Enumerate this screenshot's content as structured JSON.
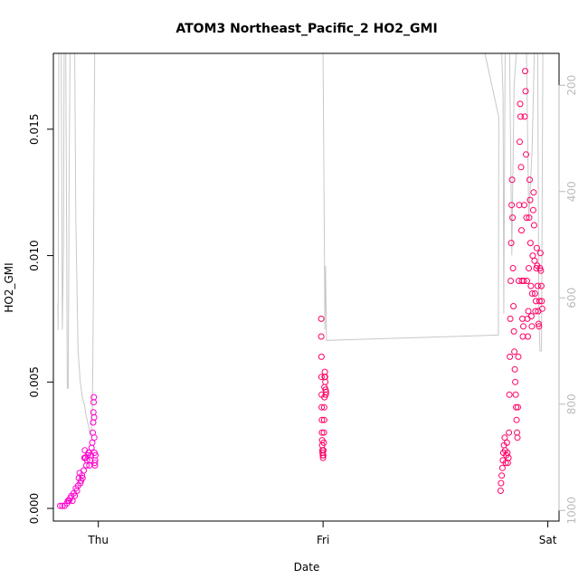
{
  "chart_data": {
    "type": "scatter",
    "title": "ATOM3 Northeast_Pacific_2 HO2_GMI",
    "xlabel": "Date",
    "ylabel": "HO2_GMI",
    "x_ticks": [
      "Thu",
      "Fri",
      "Sat"
    ],
    "x_range_days": [
      -0.2,
      2.05
    ],
    "ylim": [
      -0.0005,
      0.018
    ],
    "y_ticks": [
      0.0,
      0.005,
      0.01,
      0.015
    ],
    "y_tick_labels": [
      "0.000",
      "0.005",
      "0.010",
      "0.015"
    ],
    "y2_label": "",
    "y2_ticks": [
      200,
      400,
      600,
      800,
      1000
    ],
    "y2_range_reversed": [
      1020,
      140
    ],
    "grid": false,
    "legend": "none",
    "colors": {
      "early_points": "#ff00cc",
      "late_points": "#ff0066",
      "pressure_line": "#c8c8c8",
      "axis": "#000000",
      "right_axis": "#bbbbbb"
    },
    "series": [
      {
        "values": [
          [
            -0.17,
            0.0001
          ],
          [
            -0.16,
            0.0001
          ],
          [
            -0.15,
            0.0001
          ],
          [
            -0.14,
            0.0002
          ],
          [
            -0.135,
            0.0003
          ],
          [
            -0.13,
            0.0003
          ],
          [
            -0.125,
            0.0004
          ],
          [
            -0.12,
            0.0005
          ],
          [
            -0.115,
            0.0003
          ],
          [
            -0.11,
            0.0006
          ],
          [
            -0.105,
            0.0005
          ],
          [
            -0.1,
            0.0008
          ],
          [
            -0.095,
            0.0007
          ],
          [
            -0.09,
            0.0009
          ],
          [
            -0.087,
            0.0012
          ],
          [
            -0.083,
            0.0014
          ],
          [
            -0.08,
            0.001
          ],
          [
            -0.077,
            0.0011
          ],
          [
            -0.073,
            0.0013
          ],
          [
            -0.07,
            0.0012
          ],
          [
            -0.065,
            0.0015
          ],
          [
            -0.062,
            0.002
          ],
          [
            -0.06,
            0.0023
          ],
          [
            -0.057,
            0.002
          ],
          [
            -0.053,
            0.0017
          ],
          [
            -0.05,
            0.0019
          ],
          [
            -0.047,
            0.0021
          ],
          [
            -0.043,
            0.0022
          ],
          [
            -0.04,
            0.0017
          ],
          [
            -0.037,
            0.0019
          ],
          [
            -0.033,
            0.0021
          ],
          [
            -0.03,
            0.0024
          ],
          [
            -0.027,
            0.0026
          ],
          [
            -0.025,
            0.003
          ],
          [
            -0.023,
            0.0034
          ],
          [
            -0.022,
            0.0038
          ],
          [
            -0.021,
            0.0042
          ],
          [
            -0.02,
            0.0044
          ],
          [
            -0.019,
            0.0036
          ],
          [
            -0.018,
            0.0028
          ],
          [
            -0.017,
            0.0022
          ],
          [
            -0.016,
            0.0018
          ],
          [
            -0.015,
            0.0017
          ],
          [
            -0.014,
            0.0019
          ],
          [
            -0.013,
            0.0021
          ]
        ]
      },
      {
        "values": [
          [
            0.992,
            0.0075
          ],
          [
            0.992,
            0.0068
          ],
          [
            0.993,
            0.006
          ],
          [
            0.993,
            0.0052
          ],
          [
            0.994,
            0.0045
          ],
          [
            0.994,
            0.004
          ],
          [
            0.995,
            0.0035
          ],
          [
            0.995,
            0.003
          ],
          [
            0.996,
            0.0027
          ],
          [
            0.996,
            0.0025
          ],
          [
            0.997,
            0.0023
          ],
          [
            0.998,
            0.0022
          ],
          [
            0.999,
            0.0021
          ],
          [
            1.0,
            0.002
          ],
          [
            1.001,
            0.0021
          ],
          [
            1.002,
            0.0023
          ],
          [
            1.003,
            0.0026
          ],
          [
            1.004,
            0.003
          ],
          [
            1.005,
            0.0035
          ],
          [
            1.005,
            0.004
          ],
          [
            1.006,
            0.0044
          ],
          [
            1.006,
            0.0048
          ],
          [
            1.007,
            0.0052
          ],
          [
            1.008,
            0.0054
          ],
          [
            1.009,
            0.0052
          ],
          [
            1.01,
            0.005
          ],
          [
            1.011,
            0.0047
          ],
          [
            1.012,
            0.0045
          ],
          [
            1.013,
            0.0046
          ],
          [
            1.79,
            0.0007
          ],
          [
            1.792,
            0.001
          ],
          [
            1.795,
            0.0013
          ],
          [
            1.798,
            0.0016
          ],
          [
            1.8,
            0.0019
          ],
          [
            1.802,
            0.0022
          ],
          [
            1.805,
            0.0025
          ],
          [
            1.808,
            0.0028
          ],
          [
            1.81,
            0.0023
          ],
          [
            1.813,
            0.0018
          ],
          [
            1.815,
            0.0021
          ],
          [
            1.818,
            0.0026
          ],
          [
            1.82,
            0.0022
          ],
          [
            1.822,
            0.0018
          ],
          [
            1.825,
            0.002
          ],
          [
            1.827,
            0.003
          ],
          [
            1.829,
            0.0045
          ],
          [
            1.831,
            0.006
          ],
          [
            1.833,
            0.0075
          ],
          [
            1.835,
            0.009
          ],
          [
            1.837,
            0.0105
          ],
          [
            1.839,
            0.012
          ],
          [
            1.841,
            0.013
          ],
          [
            1.843,
            0.0115
          ],
          [
            1.845,
            0.0095
          ],
          [
            1.847,
            0.008
          ],
          [
            1.849,
            0.007
          ],
          [
            1.851,
            0.0062
          ],
          [
            1.853,
            0.0055
          ],
          [
            1.855,
            0.005
          ],
          [
            1.857,
            0.0045
          ],
          [
            1.859,
            0.004
          ],
          [
            1.861,
            0.0035
          ],
          [
            1.863,
            0.003
          ],
          [
            1.865,
            0.0028
          ],
          [
            1.867,
            0.004
          ],
          [
            1.869,
            0.006
          ],
          [
            1.871,
            0.009
          ],
          [
            1.873,
            0.012
          ],
          [
            1.875,
            0.0145
          ],
          [
            1.877,
            0.016
          ],
          [
            1.879,
            0.0155
          ],
          [
            1.881,
            0.0135
          ],
          [
            1.883,
            0.011
          ],
          [
            1.885,
            0.009
          ],
          [
            1.887,
            0.0075
          ],
          [
            1.889,
            0.0068
          ],
          [
            1.891,
            0.0072
          ],
          [
            1.893,
            0.009
          ],
          [
            1.895,
            0.012
          ],
          [
            1.897,
            0.0155
          ],
          [
            1.899,
            0.0173
          ],
          [
            1.901,
            0.0165
          ],
          [
            1.903,
            0.014
          ],
          [
            1.905,
            0.0115
          ],
          [
            1.907,
            0.009
          ],
          [
            1.909,
            0.0075
          ],
          [
            1.911,
            0.0068
          ],
          [
            1.913,
            0.0078
          ],
          [
            1.915,
            0.0095
          ],
          [
            1.917,
            0.0115
          ],
          [
            1.919,
            0.013
          ],
          [
            1.921,
            0.0122
          ],
          [
            1.923,
            0.0105
          ],
          [
            1.925,
            0.0088
          ],
          [
            1.927,
            0.0076
          ],
          [
            1.929,
            0.0072
          ],
          [
            1.931,
            0.0085
          ],
          [
            1.933,
            0.01
          ],
          [
            1.935,
            0.0118
          ],
          [
            1.937,
            0.0125
          ],
          [
            1.939,
            0.0112
          ],
          [
            1.941,
            0.0098
          ],
          [
            1.943,
            0.0085
          ],
          [
            1.945,
            0.0078
          ],
          [
            1.947,
            0.0082
          ],
          [
            1.949,
            0.0095
          ],
          [
            1.951,
            0.0103
          ],
          [
            1.953,
            0.0096
          ],
          [
            1.955,
            0.0088
          ],
          [
            1.957,
            0.0078
          ],
          [
            1.959,
            0.0073
          ],
          [
            1.961,
            0.0072
          ],
          [
            1.963,
            0.0082
          ],
          [
            1.965,
            0.0095
          ],
          [
            1.967,
            0.0101
          ],
          [
            1.969,
            0.0094
          ],
          [
            1.971,
            0.0088
          ],
          [
            1.973,
            0.0082
          ],
          [
            1.975,
            0.0079
          ]
        ]
      },
      {
        "type": "line",
        "axis": "right",
        "values": [
          [
            -0.18,
            610
          ],
          [
            -0.179,
            660
          ],
          [
            -0.178,
            540
          ],
          [
            -0.176,
            140
          ],
          [
            -0.165,
            140
          ],
          [
            -0.16,
            660
          ],
          [
            -0.155,
            500
          ],
          [
            -0.152,
            140
          ],
          [
            -0.145,
            140
          ],
          [
            -0.142,
            380
          ],
          [
            -0.138,
            770
          ],
          [
            -0.134,
            770
          ],
          [
            -0.13,
            380
          ],
          [
            -0.126,
            140
          ],
          [
            -0.105,
            140
          ],
          [
            -0.1,
            450
          ],
          [
            -0.09,
            700
          ],
          [
            -0.08,
            760
          ],
          [
            -0.07,
            790
          ],
          [
            -0.062,
            800
          ],
          [
            -0.055,
            820
          ],
          [
            -0.047,
            835
          ],
          [
            -0.04,
            850
          ],
          [
            -0.033,
            860
          ],
          [
            -0.026,
            800
          ],
          [
            -0.022,
            600
          ],
          [
            -0.019,
            300
          ],
          [
            -0.016,
            140
          ],
          [
            1.0,
            140
          ],
          [
            1.006,
            500
          ],
          [
            1.008,
            660
          ],
          [
            1.011,
            540
          ],
          [
            1.015,
            680
          ],
          [
            1.78,
            670
          ],
          [
            1.782,
            260
          ],
          [
            1.72,
            140
          ],
          [
            1.795,
            140
          ],
          [
            1.801,
            220
          ],
          [
            1.804,
            630
          ],
          [
            1.807,
            400
          ],
          [
            1.81,
            140
          ],
          [
            1.83,
            140
          ],
          [
            1.84,
            520
          ],
          [
            1.85,
            200
          ],
          [
            1.86,
            140
          ],
          [
            1.905,
            140
          ],
          [
            1.915,
            450
          ],
          [
            1.93,
            320
          ],
          [
            1.94,
            140
          ],
          [
            1.955,
            140
          ],
          [
            1.96,
            620
          ],
          [
            1.965,
            700
          ],
          [
            1.972,
            700
          ],
          [
            1.978,
            140
          ]
        ]
      }
    ]
  }
}
